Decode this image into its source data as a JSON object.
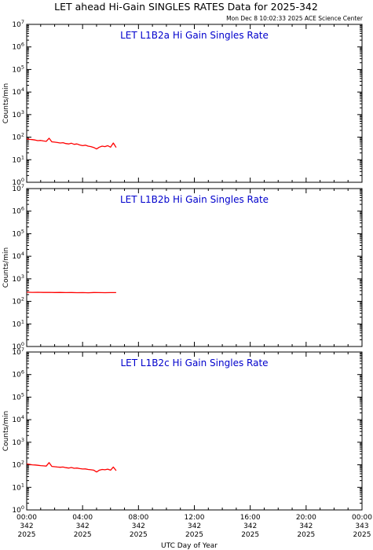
{
  "title": "LET ahead Hi-Gain SINGLES RATES Data for 2025-342",
  "timestamp": "Mon Dec  8 10:02:33 2025 ACE Science Center",
  "xlabel": "UTC Day of Year",
  "series_color": "#ff0000",
  "panel_title_color": "#0000cc",
  "chart_data": [
    {
      "type": "line",
      "title": "LET L1B2a Hi Gain Singles Rate",
      "ylabel": "Counts/min",
      "yscale": "log",
      "ylim": [
        1,
        10000000
      ],
      "xlim": [
        0,
        24
      ],
      "x_units": "hours UTC on day 342",
      "x": [
        0.0,
        0.2,
        0.4,
        0.6,
        0.8,
        1.0,
        1.2,
        1.4,
        1.6,
        1.8,
        2.0,
        2.2,
        2.4,
        2.6,
        2.8,
        3.0,
        3.2,
        3.4,
        3.6,
        3.8,
        4.0,
        4.2,
        4.4,
        4.6,
        4.8,
        5.0,
        5.2,
        5.4,
        5.6,
        5.8,
        6.0,
        6.2,
        6.4
      ],
      "values": [
        85,
        80,
        78,
        75,
        70,
        72,
        68,
        65,
        90,
        62,
        60,
        58,
        55,
        57,
        52,
        50,
        54,
        48,
        50,
        45,
        42,
        44,
        40,
        38,
        35,
        30,
        36,
        40,
        38,
        42,
        36,
        55,
        35
      ]
    },
    {
      "type": "line",
      "title": "LET L1B2b Hi Gain Singles Rate",
      "ylabel": "Counts/min",
      "yscale": "log",
      "ylim": [
        1,
        10000000
      ],
      "xlim": [
        0,
        24
      ],
      "x_units": "hours UTC on day 342",
      "x": [
        0.0,
        0.4,
        0.8,
        1.2,
        1.6,
        2.0,
        2.4,
        2.8,
        3.2,
        3.6,
        4.0,
        4.4,
        4.8,
        5.2,
        5.6,
        6.0,
        6.4
      ],
      "values": [
        255,
        250,
        252,
        248,
        250,
        246,
        248,
        244,
        247,
        243,
        245,
        242,
        246,
        244,
        243,
        245,
        244
      ]
    },
    {
      "type": "line",
      "title": "LET L1B2c Hi Gain Singles Rate",
      "ylabel": "Counts/min",
      "yscale": "log",
      "ylim": [
        1,
        10000000
      ],
      "xlim": [
        0,
        24
      ],
      "x_units": "hours UTC on day 342",
      "x": [
        0.0,
        0.2,
        0.4,
        0.6,
        0.8,
        1.0,
        1.2,
        1.4,
        1.6,
        1.8,
        2.0,
        2.2,
        2.4,
        2.6,
        2.8,
        3.0,
        3.2,
        3.4,
        3.6,
        3.8,
        4.0,
        4.2,
        4.4,
        4.6,
        4.8,
        5.0,
        5.2,
        5.4,
        5.6,
        5.8,
        6.0,
        6.2,
        6.4
      ],
      "values": [
        110,
        105,
        100,
        98,
        95,
        92,
        90,
        88,
        125,
        85,
        82,
        80,
        78,
        80,
        75,
        72,
        76,
        70,
        72,
        68,
        65,
        66,
        62,
        60,
        58,
        48,
        58,
        62,
        60,
        64,
        58,
        80,
        55
      ]
    }
  ],
  "y_ticks": [
    {
      "base": "10",
      "exp": "0"
    },
    {
      "base": "10",
      "exp": "1"
    },
    {
      "base": "10",
      "exp": "2"
    },
    {
      "base": "10",
      "exp": "3"
    },
    {
      "base": "10",
      "exp": "4"
    },
    {
      "base": "10",
      "exp": "5"
    },
    {
      "base": "10",
      "exp": "6"
    },
    {
      "base": "10",
      "exp": "7"
    }
  ],
  "x_ticks": [
    {
      "x": 0,
      "time": "00:00",
      "doy": "342",
      "year": "2025"
    },
    {
      "x": 4,
      "time": "04:00",
      "doy": "342",
      "year": "2025"
    },
    {
      "x": 8,
      "time": "08:00",
      "doy": "342",
      "year": "2025"
    },
    {
      "x": 12,
      "time": "12:00",
      "doy": "342",
      "year": "2025"
    },
    {
      "x": 16,
      "time": "16:00",
      "doy": "342",
      "year": "2025"
    },
    {
      "x": 20,
      "time": "20:00",
      "doy": "342",
      "year": "2025"
    },
    {
      "x": 24,
      "time": "00:00",
      "doy": "343",
      "year": "2025"
    }
  ]
}
